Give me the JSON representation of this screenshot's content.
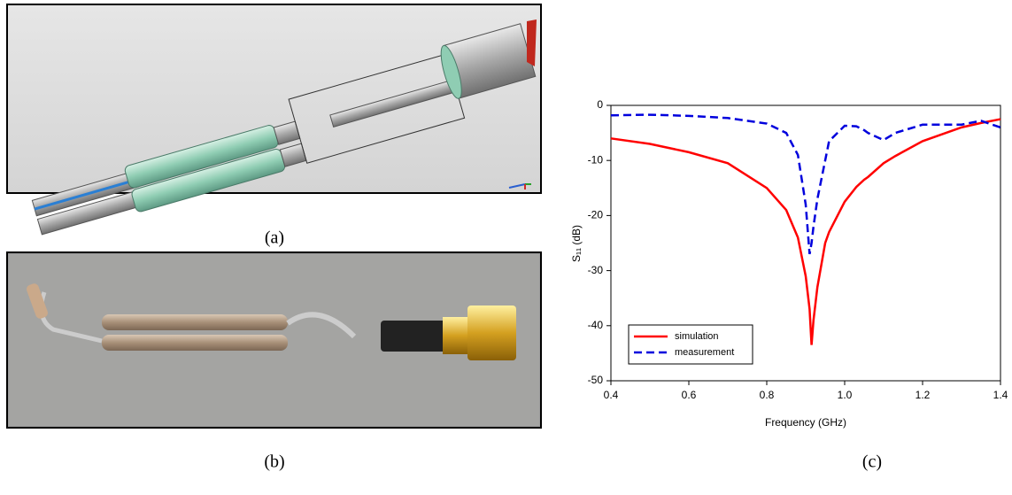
{
  "captions": [
    "(a)",
    "(b)",
    "(c)"
  ],
  "chart_data": {
    "type": "line",
    "xlabel": "Frequency (GHz)",
    "ylabel": "S₁₁ (dB)",
    "x": [
      0.4,
      0.5,
      0.6,
      0.7,
      0.8,
      0.85,
      0.88,
      0.9,
      0.91,
      0.915,
      0.92,
      0.93,
      0.95,
      0.96,
      1.0,
      1.03,
      1.05,
      1.06,
      1.1,
      1.13,
      1.2,
      1.3,
      1.35,
      1.4
    ],
    "series": [
      {
        "name": "simulation",
        "color": "#ff0000",
        "line_style": "solid",
        "values": [
          -6,
          -7,
          -8.5,
          -10.5,
          -15,
          -19,
          -24,
          -31,
          -37,
          -43.5,
          -39,
          -33,
          -25,
          -23,
          -17.5,
          -14.8,
          -13.5,
          -13,
          -10.5,
          -9.2,
          -6.5,
          -4,
          -3.2,
          -2.5
        ]
      },
      {
        "name": "measurement",
        "color": "#0000dd",
        "line_style": "dashed",
        "values": [
          -1.8,
          -1.7,
          -1.9,
          -2.3,
          -3.3,
          -5,
          -9,
          -18,
          -27,
          -25,
          -22,
          -17,
          -10,
          -6.5,
          -3.7,
          -3.8,
          -4.5,
          -5,
          -6.3,
          -5,
          -3.5,
          -3.5,
          -2.8,
          -4
        ]
      }
    ],
    "xlim": [
      0.4,
      1.4
    ],
    "xticks": [
      0.4,
      0.6,
      0.8,
      {
        "value": 1.0,
        "label": "1.0"
      },
      1.2,
      1.4
    ],
    "ylim": [
      -50,
      0
    ],
    "yticks": [
      0,
      -10,
      -20,
      -30,
      -40,
      -50
    ],
    "legend": "lower left"
  }
}
